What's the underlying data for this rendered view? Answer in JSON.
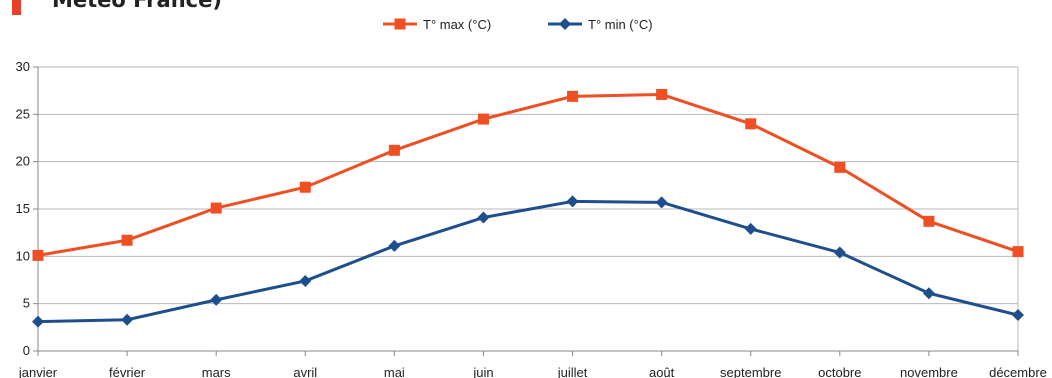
{
  "header": {
    "title_fragment": "Météo France)",
    "accent_color": "#e8402a"
  },
  "chart_data": {
    "type": "line",
    "categories": [
      "janvier",
      "février",
      "mars",
      "avril",
      "mai",
      "juin",
      "juillet",
      "août",
      "septembre",
      "octobre",
      "novembre",
      "décembre"
    ],
    "series": [
      {
        "name": "T° max (°C)",
        "color": "#f04e23",
        "marker": "square",
        "values": [
          10.1,
          11.7,
          15.1,
          17.3,
          21.2,
          24.5,
          26.9,
          27.1,
          24.0,
          19.4,
          13.7,
          10.5
        ]
      },
      {
        "name": "T° min (°C)",
        "color": "#1e4f8c",
        "marker": "diamond",
        "values": [
          3.1,
          3.3,
          5.4,
          7.4,
          11.1,
          14.1,
          15.8,
          15.7,
          12.9,
          10.4,
          6.1,
          3.8
        ]
      }
    ],
    "ylim": [
      0,
      30
    ],
    "yticks": [
      "0",
      "5",
      "10",
      "15",
      "20",
      "25",
      "30"
    ],
    "grid": true,
    "legend_position": "top-center",
    "title": "",
    "xlabel": "",
    "ylabel": ""
  }
}
